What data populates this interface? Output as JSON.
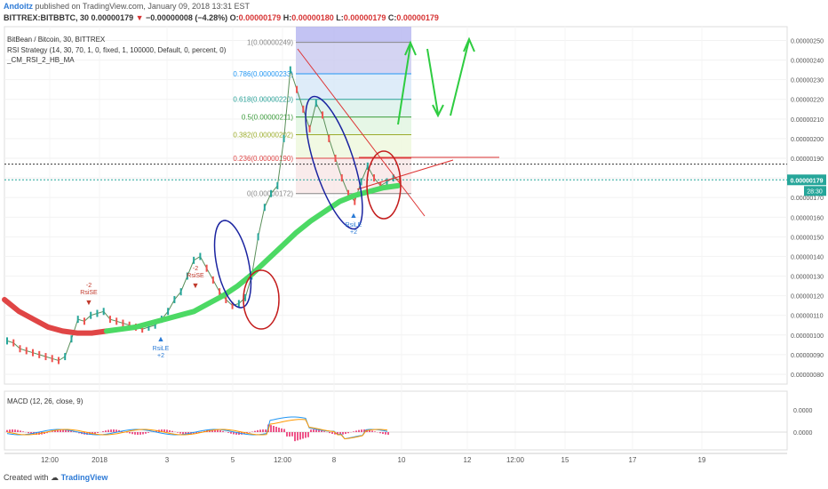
{
  "header": {
    "author": "Andoitz",
    "published": "published on TradingView.com, January 09, 2018 13:31 EST",
    "symbol": "BITTREX:BITBBTC, 30",
    "price": "0.00000179",
    "change": "−0.00000008 (−4.28%)",
    "o_label": "O:",
    "o": "0.00000179",
    "h_label": "H:",
    "h": "0.00000180",
    "l_label": "L:",
    "l": "0.00000179",
    "c_label": "C:",
    "c": "0.00000179"
  },
  "footer": {
    "created": "Created with",
    "brand": "TradingView"
  },
  "chart_data": [
    {
      "type": "line",
      "title": "BitBean / Bitcoin, 30, BITTREX",
      "legend": [
        "RSI Strategy (14, 30, 70, 1, 0, fixed, 1, 100000, Default, 0, percent, 0)",
        "_CM_RSI_2_HB_MA"
      ],
      "x_tick_labels": [
        "12:00",
        "2018",
        "3",
        "5",
        "12:00",
        "8",
        "10",
        "12",
        "12:00",
        "15",
        "17",
        "19"
      ],
      "y_tick_labels": [
        "0.00000250",
        "0.00000240",
        "0.00000230",
        "0.00000220",
        "0.00000210",
        "0.00000200",
        "0.00000190",
        "0.00000180",
        "0.00000170",
        "0.00000160",
        "0.00000150",
        "0.00000140",
        "0.00000130",
        "0.00000120",
        "0.00000110",
        "0.00000100",
        "0.00000090",
        "0.00000080"
      ],
      "ylim": [
        7.5e-07,
        2.57e-06
      ],
      "current_price_label": "0.00000179",
      "countdown_label": "28:30",
      "dotted_levels": [
        1.87e-06,
        1.79e-06
      ],
      "price_series": [
        9.7e-07,
        9.6e-07,
        9.3e-07,
        9.2e-07,
        9.1e-07,
        9e-07,
        8.9e-07,
        8.8e-07,
        8.7e-07,
        8.9e-07,
        9.8e-07,
        1.08e-06,
        1.07e-06,
        1.1e-06,
        1.11e-06,
        1.12e-06,
        1.08e-06,
        1.07e-06,
        1.06e-06,
        1.05e-06,
        1.04e-06,
        1.03e-06,
        1.04e-06,
        1.05e-06,
        1.08e-06,
        1.12e-06,
        1.18e-06,
        1.22e-06,
        1.3e-06,
        1.38e-06,
        1.4e-06,
        1.34e-06,
        1.28e-06,
        1.22e-06,
        1.18e-06,
        1.15e-06,
        1.16e-06,
        1.19e-06,
        1.3e-06,
        1.5e-06,
        1.65e-06,
        1.72e-06,
        1.76e-06,
        2e-06,
        2.35e-06,
        2.25e-06,
        2.15e-06,
        2.05e-06,
        2.18e-06,
        2.12e-06,
        2e-06,
        1.9e-06,
        1.8e-06,
        1.72e-06,
        1.68e-06,
        1.78e-06,
        1.86e-06,
        1.8e-06,
        1.76e-06,
        1.78e-06,
        1.8e-06,
        1.79e-06
      ],
      "ma_series": [
        1.18e-06,
        1.12e-06,
        1.08e-06,
        1.04e-06,
        1.02e-06,
        1.01e-06,
        1.01e-06,
        1.02e-06,
        1.03e-06,
        1.04e-06,
        1.06e-06,
        1.08e-06,
        1.1e-06,
        1.12e-06,
        1.16e-06,
        1.2e-06,
        1.25e-06,
        1.31e-06,
        1.38e-06,
        1.45e-06,
        1.52e-06,
        1.58e-06,
        1.63e-06,
        1.68e-06,
        1.71e-06,
        1.73e-06,
        1.75e-06,
        1.76e-06
      ],
      "fib_levels": [
        {
          "label": "1(0.00000249)",
          "value": 2.49e-06
        },
        {
          "label": "0.786(0.00000233)",
          "value": 2.33e-06
        },
        {
          "label": "0.618(0.00000220)",
          "value": 2.2e-06
        },
        {
          "label": "0.5(0.00000211)",
          "value": 2.11e-06
        },
        {
          "label": "0.382(0.00000202)",
          "value": 2.02e-06
        },
        {
          "label": "0.236(0.00000190)",
          "value": 1.9e-06
        },
        {
          "label": "0(0.00000172)",
          "value": 1.72e-06
        }
      ],
      "signals": [
        {
          "text": "RsiSE",
          "qty": "-2",
          "side": "sell"
        },
        {
          "text": "RsiSE",
          "qty": "-2",
          "side": "sell"
        },
        {
          "text": "RsiLE",
          "qty": "+2",
          "side": "buy"
        },
        {
          "text": "RsiLE",
          "qty": "+2",
          "side": "buy"
        }
      ]
    },
    {
      "type": "line",
      "title": "MACD (12, 26, close, 9)",
      "y_tick_labels": [
        "0.0000",
        "0.0000"
      ]
    }
  ],
  "colors": {
    "up": "#26a69a",
    "down": "#ef5350",
    "ma_green": "#4cd964",
    "ma_red": "#e04545",
    "fib_blue": "#2196f3"
  }
}
